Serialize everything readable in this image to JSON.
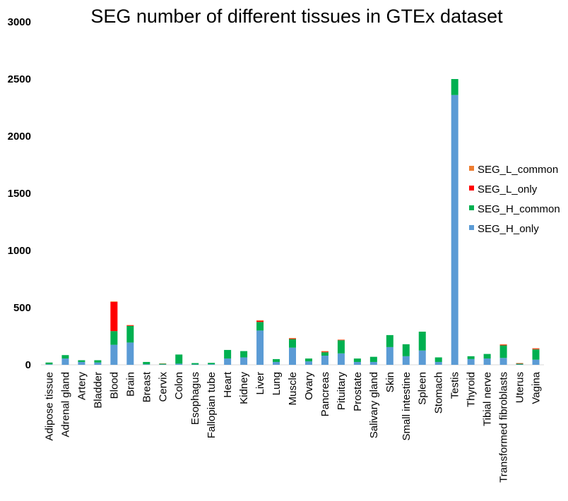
{
  "chart_data": {
    "type": "bar",
    "stacked": true,
    "title": "SEG number of different tissues in GTEx dataset",
    "xlabel": "",
    "ylabel": "",
    "ylim": [
      0,
      3000
    ],
    "yticks": [
      0,
      500,
      1000,
      1500,
      2000,
      2500,
      3000
    ],
    "grid": false,
    "legend_position": "right",
    "categories": [
      "Adipose tissue",
      "Adrenal gland",
      "Artery",
      "Bladder",
      "Blood",
      "Brain",
      "Breast",
      "Cervix",
      "Colon",
      "Esophagus",
      "Fallopian tube",
      "Heart",
      "Kidney",
      "Liver",
      "Lung",
      "Muscle",
      "Ovary",
      "Pancreas",
      "Pituitary",
      "Prostate",
      "Salivary gland",
      "Skin",
      "Small intestine",
      "Spleen",
      "Stomach",
      "Testis",
      "Thyroid",
      "Tibial nerve",
      "Transformed fibroblasts",
      "Uterus",
      "Vagina"
    ],
    "series": [
      {
        "name": "SEG_H_only",
        "color": "#5B9BD5",
        "values": [
          5,
          55,
          25,
          20,
          175,
          195,
          5,
          3,
          10,
          3,
          5,
          55,
          65,
          300,
          25,
          150,
          30,
          80,
          100,
          25,
          25,
          155,
          75,
          125,
          25,
          2360,
          50,
          55,
          60,
          3,
          45
        ]
      },
      {
        "name": "SEG_H_common",
        "color": "#00B050",
        "values": [
          15,
          30,
          15,
          20,
          120,
          145,
          20,
          7,
          80,
          12,
          12,
          75,
          55,
          75,
          25,
          75,
          25,
          30,
          115,
          30,
          45,
          105,
          105,
          165,
          40,
          140,
          25,
          40,
          110,
          7,
          90
        ]
      },
      {
        "name": "SEG_L_only",
        "color": "#FF0000",
        "values": [
          0,
          0,
          0,
          0,
          255,
          5,
          0,
          0,
          0,
          0,
          0,
          0,
          0,
          10,
          0,
          5,
          0,
          5,
          3,
          0,
          0,
          0,
          0,
          0,
          0,
          0,
          0,
          0,
          5,
          3,
          5
        ]
      },
      {
        "name": "SEG_L_common",
        "color": "#ED7D31",
        "values": [
          0,
          0,
          0,
          0,
          5,
          3,
          0,
          3,
          0,
          0,
          0,
          0,
          0,
          5,
          0,
          5,
          0,
          5,
          3,
          0,
          0,
          0,
          0,
          0,
          0,
          0,
          0,
          0,
          5,
          3,
          5
        ]
      }
    ],
    "legend_order": [
      "SEG_L_common",
      "SEG_L_only",
      "SEG_H_common",
      "SEG_H_only"
    ]
  }
}
